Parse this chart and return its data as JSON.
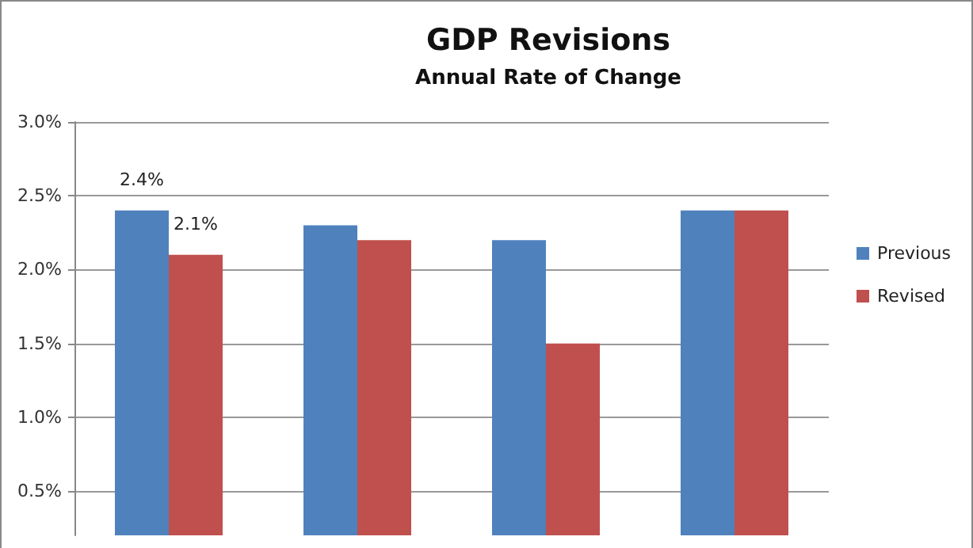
{
  "chart_data": {
    "type": "bar",
    "title": "GDP Revisions",
    "subtitle": "Annual Rate of Change",
    "categories": [
      null,
      null,
      null,
      null
    ],
    "series": [
      {
        "name": "Previous",
        "color": "#4f81bd",
        "values": [
          2.4,
          2.3,
          2.2,
          2.4
        ],
        "value_labels": [
          "2.4%",
          null,
          null,
          null
        ]
      },
      {
        "name": "Revised",
        "color": "#c0504d",
        "values": [
          2.1,
          2.2,
          1.5,
          2.4
        ],
        "value_labels": [
          "2.1%",
          null,
          null,
          null
        ]
      }
    ],
    "ylim": [
      0.2,
      3.0
    ],
    "yticks": [
      {
        "value": 0.5,
        "label": "0.5%"
      },
      {
        "value": 1.0,
        "label": "1.0%"
      },
      {
        "value": 1.5,
        "label": "1.5%"
      },
      {
        "value": 2.0,
        "label": "2.0%"
      },
      {
        "value": 2.5,
        "label": "2.5%"
      },
      {
        "value": 3.0,
        "label": "3.0%"
      }
    ],
    "grid": "y",
    "legend": "right"
  }
}
